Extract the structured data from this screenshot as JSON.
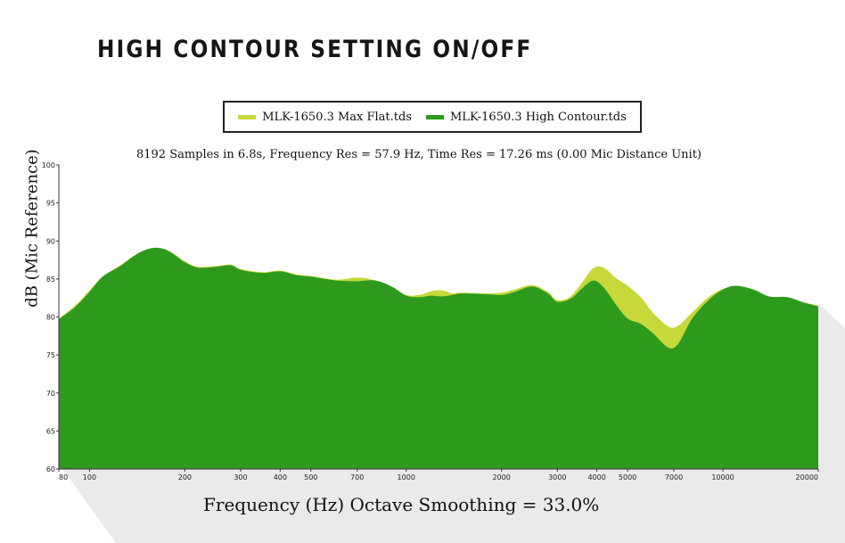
{
  "page_title": "HIGH CONTOUR SETTING ON/OFF",
  "chart_data": {
    "type": "area",
    "subtitle": "8192 Samples in 6.8s, Frequency Res = 57.9 Hz, Time Res = 17.26 ms (0.00 Mic Distance Unit)",
    "xlabel": "Frequency (Hz) Octave Smoothing = 33.0%",
    "ylabel": "dB (Mic Reference)",
    "xscale": "log",
    "xlim": [
      80,
      20000
    ],
    "ylim": [
      60,
      100
    ],
    "grid": false,
    "legend_position": "top",
    "x_ticks": [
      80,
      100,
      200,
      300,
      400,
      500,
      700,
      1000,
      2000,
      3000,
      4000,
      5000,
      7000,
      10000,
      20000
    ],
    "x_tick_labels": [
      "80",
      "100",
      "200",
      "300",
      "400",
      "500",
      "700",
      "1000",
      "2000",
      "3000",
      "4000",
      "5000",
      "7000",
      "10000",
      "20000"
    ],
    "y_ticks": [
      60,
      65,
      70,
      75,
      80,
      85,
      90,
      95,
      100
    ],
    "y_tick_labels": [
      "60",
      "65",
      "70",
      "75",
      "80",
      "85",
      "90",
      "95",
      "100"
    ],
    "series": [
      {
        "name": "MLK-1650.3 Max Flat.tds",
        "color": "#c6d83a",
        "points": [
          [
            80,
            79.8
          ],
          [
            90,
            81.5
          ],
          [
            100,
            83.5
          ],
          [
            110,
            85.3
          ],
          [
            125,
            86.8
          ],
          [
            140,
            88.2
          ],
          [
            155,
            89.0
          ],
          [
            170,
            89.0
          ],
          [
            185,
            88.3
          ],
          [
            200,
            87.3
          ],
          [
            220,
            86.6
          ],
          [
            250,
            86.7
          ],
          [
            280,
            86.9
          ],
          [
            300,
            86.3
          ],
          [
            350,
            85.9
          ],
          [
            400,
            86.1
          ],
          [
            450,
            85.6
          ],
          [
            500,
            85.4
          ],
          [
            600,
            84.9
          ],
          [
            700,
            85.2
          ],
          [
            800,
            84.8
          ],
          [
            900,
            83.9
          ],
          [
            1000,
            82.9
          ],
          [
            1100,
            82.9
          ],
          [
            1200,
            83.4
          ],
          [
            1300,
            83.5
          ],
          [
            1400,
            83.1
          ],
          [
            1500,
            83.2
          ],
          [
            1800,
            83.1
          ],
          [
            2000,
            83.2
          ],
          [
            2200,
            83.6
          ],
          [
            2500,
            84.2
          ],
          [
            2800,
            83.3
          ],
          [
            3000,
            82.2
          ],
          [
            3300,
            82.7
          ],
          [
            3600,
            84.6
          ],
          [
            3900,
            86.4
          ],
          [
            4200,
            86.5
          ],
          [
            4600,
            85.1
          ],
          [
            5000,
            84.1
          ],
          [
            5500,
            82.6
          ],
          [
            6000,
            80.6
          ],
          [
            6700,
            78.8
          ],
          [
            7200,
            78.8
          ],
          [
            8000,
            80.6
          ],
          [
            9000,
            82.6
          ],
          [
            10000,
            83.7
          ],
          [
            11000,
            84.0
          ],
          [
            12500,
            83.4
          ],
          [
            14000,
            82.6
          ],
          [
            16000,
            82.5
          ],
          [
            18000,
            81.9
          ],
          [
            20000,
            81.5
          ]
        ]
      },
      {
        "name": "MLK-1650.3 High Contour.tds",
        "color": "#2e9a1d",
        "points": [
          [
            80,
            79.7
          ],
          [
            90,
            81.3
          ],
          [
            100,
            83.3
          ],
          [
            110,
            85.3
          ],
          [
            125,
            86.7
          ],
          [
            140,
            88.2
          ],
          [
            155,
            89.0
          ],
          [
            170,
            89.0
          ],
          [
            185,
            88.2
          ],
          [
            200,
            87.2
          ],
          [
            220,
            86.5
          ],
          [
            250,
            86.6
          ],
          [
            280,
            86.8
          ],
          [
            300,
            86.2
          ],
          [
            350,
            85.8
          ],
          [
            400,
            86.0
          ],
          [
            450,
            85.5
          ],
          [
            500,
            85.3
          ],
          [
            600,
            84.8
          ],
          [
            700,
            84.7
          ],
          [
            800,
            84.8
          ],
          [
            900,
            84.0
          ],
          [
            1000,
            82.8
          ],
          [
            1100,
            82.6
          ],
          [
            1200,
            82.8
          ],
          [
            1300,
            82.7
          ],
          [
            1400,
            82.9
          ],
          [
            1500,
            83.1
          ],
          [
            1800,
            83.0
          ],
          [
            2000,
            82.9
          ],
          [
            2200,
            83.3
          ],
          [
            2500,
            84.0
          ],
          [
            2800,
            83.1
          ],
          [
            3000,
            82.0
          ],
          [
            3300,
            82.4
          ],
          [
            3600,
            83.8
          ],
          [
            3900,
            84.8
          ],
          [
            4200,
            83.9
          ],
          [
            4600,
            81.6
          ],
          [
            5000,
            79.8
          ],
          [
            5500,
            79.1
          ],
          [
            6000,
            77.9
          ],
          [
            6700,
            76.0
          ],
          [
            7200,
            76.4
          ],
          [
            8000,
            79.8
          ],
          [
            9000,
            82.2
          ],
          [
            10000,
            83.6
          ],
          [
            11000,
            84.1
          ],
          [
            12500,
            83.6
          ],
          [
            14000,
            82.7
          ],
          [
            16000,
            82.6
          ],
          [
            18000,
            81.9
          ],
          [
            20000,
            81.4
          ]
        ]
      }
    ]
  }
}
